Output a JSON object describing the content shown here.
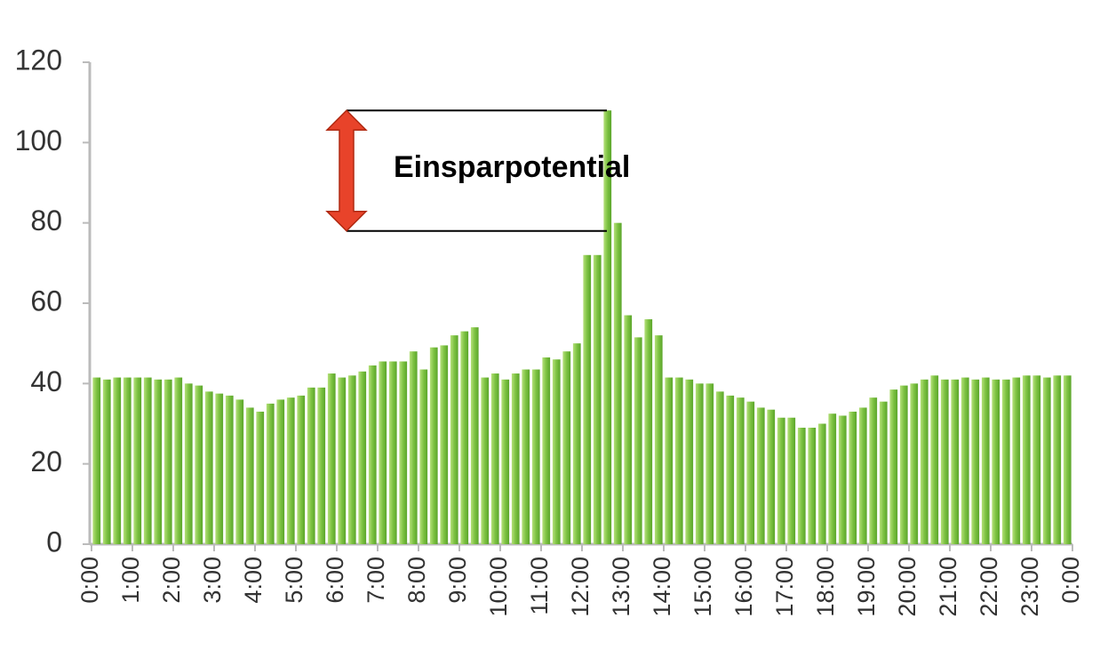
{
  "chart_data": {
    "type": "bar",
    "color": "#7dc242",
    "x": [
      0,
      0.25,
      0.5,
      0.75,
      1,
      1.25,
      1.5,
      1.75,
      2,
      2.25,
      2.5,
      2.75,
      3,
      3.25,
      3.5,
      3.75,
      4,
      4.25,
      4.5,
      4.75,
      5,
      5.25,
      5.5,
      5.75,
      6,
      6.25,
      6.5,
      6.75,
      7,
      7.25,
      7.5,
      7.75,
      8,
      8.25,
      8.5,
      8.75,
      9,
      9.25,
      9.5,
      9.75,
      10,
      10.25,
      10.5,
      10.75,
      11,
      11.25,
      11.5,
      11.75,
      12,
      12.25,
      12.5,
      12.75,
      13,
      13.25,
      13.5,
      13.75,
      14,
      14.25,
      14.5,
      14.75,
      15,
      15.25,
      15.5,
      15.75,
      16,
      16.25,
      16.5,
      16.75,
      17,
      17.25,
      17.5,
      17.75,
      18,
      18.25,
      18.5,
      18.75,
      19,
      19.25,
      19.5,
      19.75,
      20,
      20.25,
      20.5,
      20.75,
      21,
      21.25,
      21.5,
      21.75,
      22,
      22.25,
      22.5,
      22.75,
      23,
      23.25,
      23.5,
      23.75
    ],
    "values": [
      41.5,
      41,
      41.5,
      41.5,
      41.5,
      41.5,
      41,
      41,
      41.5,
      40,
      39.5,
      38,
      37.5,
      37,
      36,
      34,
      33,
      35,
      36,
      36.5,
      37,
      39,
      39,
      42.5,
      41.5,
      42,
      43,
      44.5,
      45.5,
      45.5,
      45.5,
      48,
      43.5,
      49,
      49.5,
      52,
      53,
      54,
      41.5,
      42.5,
      41,
      42.5,
      43.5,
      43.5,
      46.5,
      46,
      48,
      50,
      72,
      72,
      108,
      80,
      57,
      51.5,
      56,
      52,
      41.5,
      41.5,
      41,
      40,
      40,
      38,
      37,
      36.5,
      35.5,
      34,
      33.5,
      31.5,
      31.5,
      29,
      29,
      30,
      32.5,
      32,
      33,
      34,
      36.5,
      35.5,
      38.5,
      39.5,
      40,
      41,
      42,
      41,
      41,
      41.5,
      41,
      41.5,
      41,
      41,
      41.5,
      42,
      42,
      41.5,
      42,
      42
    ],
    "xlim": [
      0,
      24
    ],
    "xticks": [
      {
        "value": 0,
        "label": "0:00"
      },
      {
        "value": 1,
        "label": "1:00"
      },
      {
        "value": 2,
        "label": "2:00"
      },
      {
        "value": 3,
        "label": "3:00"
      },
      {
        "value": 4,
        "label": "4:00"
      },
      {
        "value": 5,
        "label": "5:00"
      },
      {
        "value": 6,
        "label": "6:00"
      },
      {
        "value": 7,
        "label": "7:00"
      },
      {
        "value": 8,
        "label": "8:00"
      },
      {
        "value": 9,
        "label": "9:00"
      },
      {
        "value": 10,
        "label": "10:00"
      },
      {
        "value": 11,
        "label": "11:00"
      },
      {
        "value": 12,
        "label": "12:00"
      },
      {
        "value": 13,
        "label": "13:00"
      },
      {
        "value": 14,
        "label": "14:00"
      },
      {
        "value": 15,
        "label": "15:00"
      },
      {
        "value": 16,
        "label": "16:00"
      },
      {
        "value": 17,
        "label": "17:00"
      },
      {
        "value": 18,
        "label": "18:00"
      },
      {
        "value": 19,
        "label": "19:00"
      },
      {
        "value": 20,
        "label": "20:00"
      },
      {
        "value": 21,
        "label": "21:00"
      },
      {
        "value": 22,
        "label": "22:00"
      },
      {
        "value": 23,
        "label": "23:00"
      },
      {
        "value": 24,
        "label": "0:00"
      }
    ],
    "ylim": [
      0,
      120
    ],
    "yticks": [
      0,
      20,
      40,
      60,
      80,
      100,
      120
    ],
    "grid": false,
    "annotation": {
      "text": "Einsparpotential",
      "from": 78,
      "to": 108
    }
  }
}
